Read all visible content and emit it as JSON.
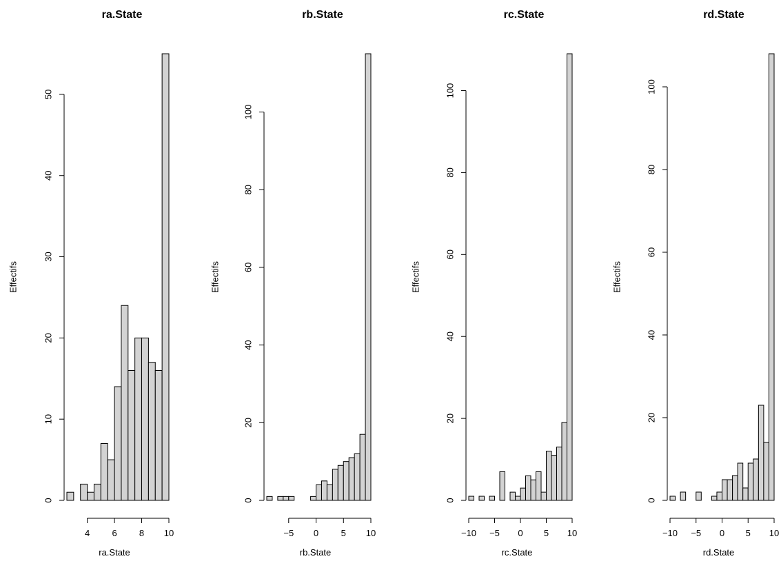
{
  "chart_data": [
    {
      "type": "bar",
      "title": "ra.State",
      "xlabel": "ra.State",
      "ylabel": "Effectifs",
      "xlim": [
        2.5,
        10
      ],
      "ylim": [
        0,
        55
      ],
      "x_ticks": [
        4,
        6,
        8,
        10
      ],
      "y_ticks": [
        0,
        10,
        20,
        30,
        40,
        50
      ],
      "bin_width": 0.5,
      "bin_starts": [
        2.5,
        3.0,
        3.5,
        4.0,
        4.5,
        5.0,
        5.5,
        6.0,
        6.5,
        7.0,
        7.5,
        8.0,
        8.5,
        9.0,
        9.5
      ],
      "values": [
        1,
        0,
        2,
        1,
        2,
        7,
        5,
        14,
        24,
        16,
        20,
        20,
        17,
        16,
        55
      ]
    },
    {
      "type": "bar",
      "title": "rb.State",
      "xlabel": "rb.State",
      "ylabel": "Effectifs",
      "xlim": [
        -9,
        10
      ],
      "ylim": [
        0,
        115
      ],
      "x_ticks": [
        -5,
        0,
        5,
        10
      ],
      "y_ticks": [
        0,
        20,
        40,
        60,
        80,
        100
      ],
      "bin_width": 1,
      "bin_starts": [
        -9,
        -8,
        -7,
        -6,
        -5,
        -4,
        -3,
        -2,
        -1,
        0,
        1,
        2,
        3,
        4,
        5,
        6,
        7,
        8,
        9
      ],
      "values": [
        1,
        0,
        1,
        1,
        1,
        0,
        0,
        0,
        1,
        4,
        5,
        4,
        8,
        9,
        10,
        11,
        12,
        17,
        115
      ]
    },
    {
      "type": "bar",
      "title": "rc.State",
      "xlabel": "rc.State",
      "ylabel": "Effectifs",
      "xlim": [
        -10,
        10
      ],
      "ylim": [
        0,
        109
      ],
      "x_ticks": [
        -10,
        -5,
        0,
        5,
        10
      ],
      "y_ticks": [
        0,
        20,
        40,
        60,
        80,
        100
      ],
      "bin_width": 1,
      "bin_starts": [
        -10,
        -9,
        -8,
        -7,
        -6,
        -5,
        -4,
        -3,
        -2,
        -1,
        0,
        1,
        2,
        3,
        4,
        5,
        6,
        7,
        8,
        9
      ],
      "values": [
        1,
        0,
        1,
        0,
        1,
        0,
        7,
        0,
        2,
        1,
        3,
        6,
        5,
        7,
        2,
        12,
        11,
        13,
        19,
        109
      ]
    },
    {
      "type": "bar",
      "title": "rd.State",
      "xlabel": "rd.State",
      "ylabel": "Effectifs",
      "xlim": [
        -10,
        10
      ],
      "ylim": [
        0,
        108
      ],
      "x_ticks": [
        -10,
        -5,
        0,
        5,
        10
      ],
      "y_ticks": [
        0,
        20,
        40,
        60,
        80,
        100
      ],
      "bin_width": 1,
      "bin_starts": [
        -10,
        -9,
        -8,
        -7,
        -6,
        -5,
        -4,
        -3,
        -2,
        -1,
        0,
        1,
        2,
        3,
        4,
        5,
        6,
        7,
        8,
        9
      ],
      "values": [
        1,
        0,
        2,
        0,
        0,
        2,
        0,
        0,
        1,
        2,
        5,
        5,
        6,
        9,
        3,
        9,
        10,
        23,
        14,
        108
      ]
    }
  ],
  "colors": {
    "bar_fill": "#d3d3d3",
    "bar_stroke": "#000000"
  }
}
